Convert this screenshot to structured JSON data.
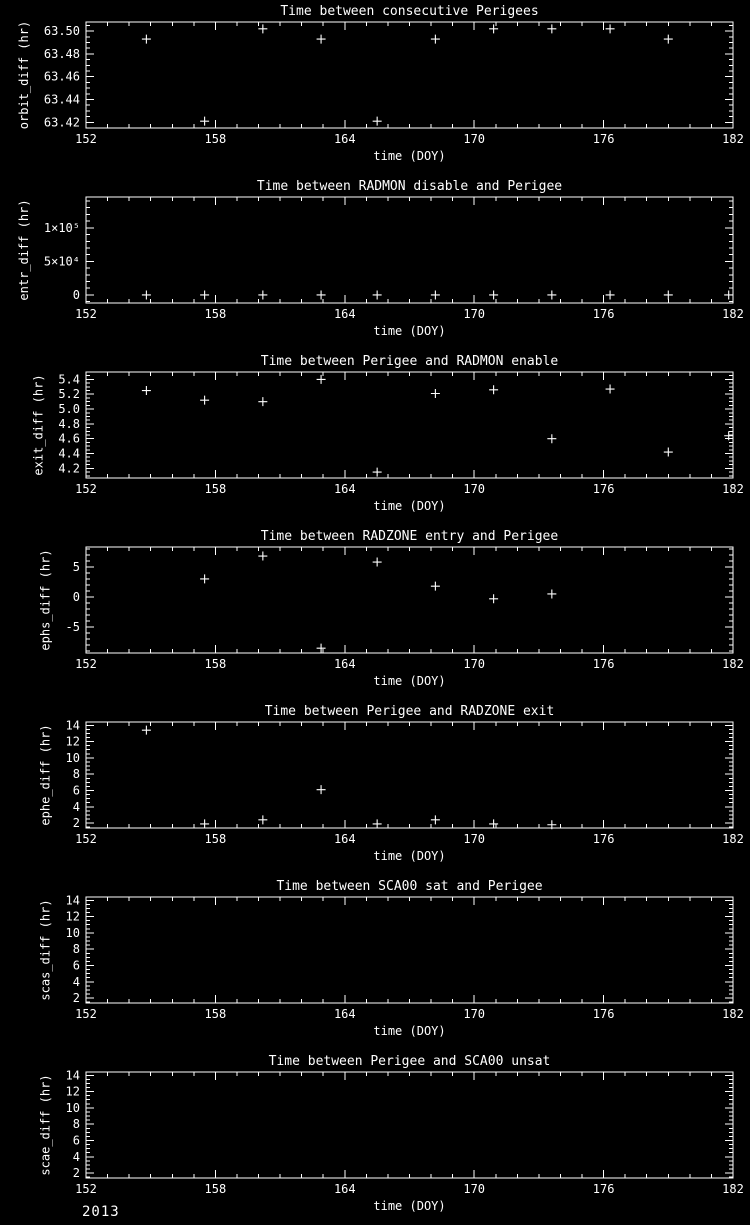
{
  "page": {
    "background": "#000000",
    "foreground": "#ffffff",
    "year_label": "2013"
  },
  "chart_data": [
    {
      "type": "scatter",
      "title": "Time between consecutive Perigees",
      "xlabel": "time (DOY)",
      "ylabel": "orbit_diff (hr)",
      "marker": "plus",
      "xlim": [
        152,
        182
      ],
      "ylim": [
        63.415,
        63.508
      ],
      "xticks": [
        152,
        158,
        164,
        170,
        176,
        182
      ],
      "x_minor_step": 1,
      "ytick_values": [
        63.42,
        63.44,
        63.46,
        63.48,
        63.5
      ],
      "ytick_labels": [
        "63.42",
        "63.44",
        "63.46",
        "63.48",
        "63.50"
      ],
      "y_minor_step": 0.005,
      "x": [
        154.8,
        157.5,
        160.2,
        162.9,
        165.5,
        168.2,
        170.9,
        173.6,
        176.3,
        179.0
      ],
      "y": [
        63.493,
        63.421,
        63.502,
        63.493,
        63.421,
        63.493,
        63.502,
        63.502,
        63.502,
        63.493
      ]
    },
    {
      "type": "scatter",
      "title": "Time between RADMON disable and Perigee",
      "xlabel": "time (DOY)",
      "ylabel": "entr_diff (hr)",
      "marker": "plus",
      "xlim": [
        152,
        182
      ],
      "ylim": [
        -12000,
        146000
      ],
      "xticks": [
        152,
        158,
        164,
        170,
        176,
        182
      ],
      "x_minor_step": 1,
      "ytick_values": [
        0,
        50000,
        100000
      ],
      "ytick_labels": [
        "0",
        "5×10⁴",
        "1×10⁵"
      ],
      "y_minor_step": 10000,
      "x": [
        154.8,
        157.5,
        160.2,
        162.9,
        165.5,
        168.2,
        170.9,
        173.6,
        176.3,
        179.0,
        181.8
      ],
      "y": [
        0,
        0,
        0,
        0,
        0,
        0,
        0,
        0,
        0,
        0,
        0
      ]
    },
    {
      "type": "scatter",
      "title": "Time between Perigee and RADMON enable",
      "xlabel": "time (DOY)",
      "ylabel": "exit_diff (hr)",
      "marker": "plus",
      "xlim": [
        152,
        182
      ],
      "ylim": [
        4.07,
        5.5
      ],
      "xticks": [
        152,
        158,
        164,
        170,
        176,
        182
      ],
      "x_minor_step": 1,
      "ytick_values": [
        4.2,
        4.4,
        4.6,
        4.8,
        5.0,
        5.2,
        5.4
      ],
      "ytick_labels": [
        "4.2",
        "4.4",
        "4.6",
        "4.8",
        "5.0",
        "5.2",
        "5.4"
      ],
      "y_minor_step": 0.05,
      "x": [
        154.8,
        157.5,
        160.2,
        162.9,
        165.5,
        168.2,
        170.9,
        173.6,
        176.3,
        179.0,
        181.8
      ],
      "y": [
        5.25,
        5.12,
        5.1,
        5.4,
        4.15,
        5.21,
        5.26,
        4.6,
        5.27,
        4.42,
        4.64
      ]
    },
    {
      "type": "scatter",
      "title": "Time between RADZONE entry and Perigee",
      "xlabel": "time (DOY)",
      "ylabel": "ephs_diff (hr)",
      "marker": "plus",
      "xlim": [
        152,
        182
      ],
      "ylim": [
        -9.3,
        8.3
      ],
      "xticks": [
        152,
        158,
        164,
        170,
        176,
        182
      ],
      "x_minor_step": 1,
      "ytick_values": [
        -5,
        0,
        5
      ],
      "ytick_labels": [
        "-5",
        "0",
        "5"
      ],
      "y_minor_step": 1,
      "x": [
        157.5,
        160.2,
        162.9,
        165.5,
        168.2,
        170.9,
        173.6
      ],
      "y": [
        3.0,
        6.8,
        -8.5,
        5.8,
        1.8,
        -0.3,
        0.5
      ]
    },
    {
      "type": "scatter",
      "title": "Time between Perigee and RADZONE exit",
      "xlabel": "time (DOY)",
      "ylabel": "ephe_diff (hr)",
      "marker": "plus",
      "xlim": [
        152,
        182
      ],
      "ylim": [
        1.4,
        14.4
      ],
      "xticks": [
        152,
        158,
        164,
        170,
        176,
        182
      ],
      "x_minor_step": 1,
      "ytick_values": [
        2,
        4,
        6,
        8,
        10,
        12,
        14
      ],
      "ytick_labels": [
        "2",
        "4",
        "6",
        "8",
        "10",
        "12",
        "14"
      ],
      "y_minor_step": 0.5,
      "x": [
        154.8,
        157.5,
        160.2,
        162.9,
        165.5,
        168.2,
        170.9,
        173.6
      ],
      "y": [
        13.4,
        1.9,
        2.4,
        6.1,
        1.9,
        2.4,
        1.9,
        1.8
      ]
    },
    {
      "type": "scatter",
      "title": "Time between SCA00 sat and Perigee",
      "xlabel": "time (DOY)",
      "ylabel": "scas_diff (hr)",
      "marker": "plus",
      "xlim": [
        152,
        182
      ],
      "ylim": [
        1.4,
        14.4
      ],
      "xticks": [
        152,
        158,
        164,
        170,
        176,
        182
      ],
      "x_minor_step": 1,
      "ytick_values": [
        2,
        4,
        6,
        8,
        10,
        12,
        14
      ],
      "ytick_labels": [
        "2",
        "4",
        "6",
        "8",
        "10",
        "12",
        "14"
      ],
      "y_minor_step": 0.5,
      "x": [],
      "y": []
    },
    {
      "type": "scatter",
      "title": "Time between Perigee and SCA00 unsat",
      "xlabel": "time (DOY)",
      "ylabel": "scae_diff (hr)",
      "marker": "plus",
      "xlim": [
        152,
        182
      ],
      "ylim": [
        1.4,
        14.4
      ],
      "xticks": [
        152,
        158,
        164,
        170,
        176,
        182
      ],
      "x_minor_step": 1,
      "ytick_values": [
        2,
        4,
        6,
        8,
        10,
        12,
        14
      ],
      "ytick_labels": [
        "2",
        "4",
        "6",
        "8",
        "10",
        "12",
        "14"
      ],
      "y_minor_step": 0.5,
      "x": [],
      "y": []
    }
  ]
}
